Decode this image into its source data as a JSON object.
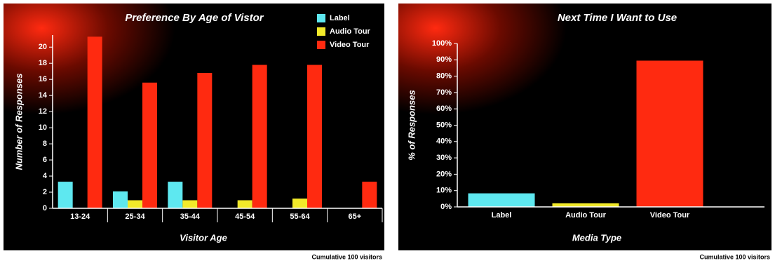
{
  "chart_data": [
    {
      "type": "bar",
      "title": "Preference By Age of Vistor",
      "xlabel": "Visitor Age",
      "ylabel": "Number of Responses",
      "categories": [
        "13-24",
        "25-34",
        "35-44",
        "45-54",
        "55-64",
        "65+"
      ],
      "series": [
        {
          "name": "Label",
          "color": "#5ee8f0",
          "values": [
            3.3,
            2.1,
            3.3,
            0,
            0,
            0
          ]
        },
        {
          "name": "Audio Tour",
          "color": "#f2ea2a",
          "values": [
            0,
            1.0,
            1.0,
            1.0,
            1.2,
            0
          ]
        },
        {
          "name": "Video Tour",
          "color": "#ff2a10",
          "values": [
            21.3,
            15.6,
            16.8,
            17.8,
            17.8,
            3.3
          ]
        }
      ],
      "ylim": [
        0,
        21.5
      ],
      "yticks": [
        0,
        2,
        4,
        6,
        8,
        10,
        12,
        14,
        16,
        18,
        20
      ],
      "legend": "top-right",
      "grid": false,
      "footnote": "Cumulative 100 visitors"
    },
    {
      "type": "bar",
      "title": "Next Time I Want to Use",
      "xlabel": "Media Type",
      "ylabel": "% of Responses",
      "categories": [
        "Label",
        "Audio Tour",
        "Video Tour"
      ],
      "values": [
        8.3,
        2.2,
        89.5
      ],
      "colors": [
        "#5ee8f0",
        "#f2ea2a",
        "#ff2a10"
      ],
      "ylim": [
        0,
        100
      ],
      "yticks": [
        {
          "value": 0,
          "label": "0%"
        },
        {
          "value": 10,
          "label": "10%"
        },
        {
          "value": 20,
          "label": "20%"
        },
        {
          "value": 30,
          "label": "30%"
        },
        {
          "value": 40,
          "label": "40%"
        },
        {
          "value": 50,
          "label": "50%"
        },
        {
          "value": 60,
          "label": "60%"
        },
        {
          "value": 70,
          "label": "70%"
        },
        {
          "value": 80,
          "label": "80%"
        },
        {
          "value": 90,
          "label": "90%"
        },
        {
          "value": 100,
          "label": "100%"
        }
      ],
      "grid": false,
      "footnote": "Cumulative 100 visitors"
    }
  ]
}
